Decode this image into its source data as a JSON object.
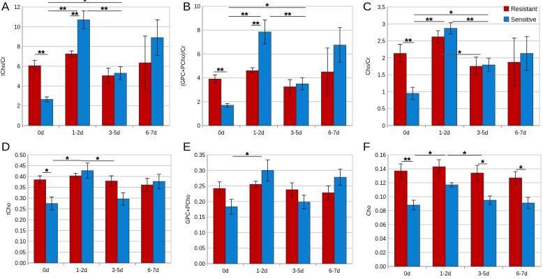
{
  "colors": {
    "resistant": "#c00000",
    "sensitive": "#0a7fd2",
    "grid": "#cccccc",
    "axis": "#999999"
  },
  "legend": {
    "resistant": "Resistant",
    "sensitive": "Sensitive"
  },
  "chart_data": [
    {
      "panel": "A",
      "type": "bar",
      "ylabel": "tCho/Cr",
      "categories": [
        "0d",
        "1-2d",
        "3-5d",
        "6-7d"
      ],
      "ylim": [
        0,
        12
      ],
      "yticks": [
        "0",
        "2",
        "4",
        "6",
        "8",
        "10",
        "12"
      ],
      "series": [
        {
          "name": "Resistant",
          "values": [
            6.05,
            7.25,
            5.05,
            6.35
          ],
          "errors": [
            0.55,
            0.3,
            0.75,
            2.7
          ]
        },
        {
          "name": "Sensitive",
          "values": [
            2.65,
            10.7,
            5.3,
            8.9
          ],
          "errors": [
            0.25,
            0.9,
            0.65,
            1.8
          ]
        }
      ],
      "significance": [
        {
          "from": 0.34,
          "to": 0.69,
          "y": 7.2,
          "label": "**"
        },
        {
          "from": 1.3,
          "to": 1.55,
          "y": 11.1,
          "label": "**"
        },
        {
          "from": 0.7,
          "to": 1.5,
          "y": 11.6,
          "label": "**"
        },
        {
          "from": 1.75,
          "to": 2.7,
          "y": 11.6,
          "label": "**"
        },
        {
          "from": 0.7,
          "to": 2.7,
          "y": 12.45,
          "label": "*"
        }
      ]
    },
    {
      "panel": "B",
      "type": "bar",
      "ylabel": "(GPC+PCho)/Cr",
      "categories": [
        "0d",
        "1-2d",
        "3-5d",
        "6-7d"
      ],
      "ylim": [
        0,
        10
      ],
      "yticks": [
        "0",
        "2",
        "4",
        "6",
        "8",
        "10"
      ],
      "series": [
        {
          "name": "Resistant",
          "values": [
            3.9,
            4.6,
            3.25,
            4.5
          ],
          "errors": [
            0.35,
            0.25,
            0.6,
            2.0
          ]
        },
        {
          "name": "Sensitive",
          "values": [
            1.7,
            7.85,
            3.5,
            6.75
          ],
          "errors": [
            0.15,
            1.0,
            0.5,
            1.45
          ]
        }
      ],
      "significance": [
        {
          "from": 0.3,
          "to": 0.65,
          "y": 4.5,
          "label": "**"
        },
        {
          "from": 1.3,
          "to": 1.55,
          "y": 8.4,
          "label": "**"
        },
        {
          "from": 0.7,
          "to": 1.55,
          "y": 9.15,
          "label": "**"
        },
        {
          "from": 1.8,
          "to": 2.75,
          "y": 9.15,
          "label": "**"
        },
        {
          "from": 0.7,
          "to": 2.75,
          "y": 9.9,
          "label": "*"
        }
      ]
    },
    {
      "panel": "C",
      "type": "bar",
      "ylabel": "Cho/Cr",
      "categories": [
        "0d",
        "1-2d",
        "3-5d",
        "6-7d"
      ],
      "ylim": [
        0,
        3.5
      ],
      "yticks": [
        "0",
        "0.5",
        "1",
        "1.5",
        "2",
        "2.5",
        "3",
        "3.5"
      ],
      "legend": "top-right",
      "series": [
        {
          "name": "Resistant",
          "values": [
            2.13,
            2.62,
            1.75,
            1.87
          ],
          "errors": [
            0.27,
            0.18,
            0.27,
            0.71
          ]
        },
        {
          "name": "Sensitive",
          "values": [
            0.95,
            2.87,
            1.79,
            2.13
          ],
          "errors": [
            0.18,
            0.17,
            0.2,
            0.5
          ]
        }
      ],
      "significance": [
        {
          "from": 0.4,
          "to": 0.7,
          "y": 2.45,
          "label": "**"
        },
        {
          "from": 1.35,
          "to": 2.45,
          "y": 2.1,
          "label": "*"
        },
        {
          "from": 0.7,
          "to": 1.5,
          "y": 3.07,
          "label": "**"
        },
        {
          "from": 1.7,
          "to": 2.65,
          "y": 3.07,
          "label": "**"
        },
        {
          "from": 0.7,
          "to": 2.65,
          "y": 3.27,
          "label": "*"
        }
      ]
    },
    {
      "panel": "D",
      "type": "bar",
      "ylabel": "tCho",
      "categories": [
        "0d",
        "1-2d",
        "3-5d",
        "6-7d"
      ],
      "ylim": [
        0,
        0.5
      ],
      "yticks": [
        "0.00",
        "0.05",
        "0.10",
        "0.15",
        "0.20",
        "0.25",
        "0.30",
        "0.35",
        "0.40",
        "0.45",
        "0.50"
      ],
      "series": [
        {
          "name": "Resistant",
          "values": [
            0.385,
            0.403,
            0.379,
            0.361
          ],
          "errors": [
            0.018,
            0.012,
            0.024,
            0.03
          ]
        },
        {
          "name": "Sensitive",
          "values": [
            0.275,
            0.427,
            0.296,
            0.377
          ],
          "errors": [
            0.03,
            0.035,
            0.028,
            0.033
          ]
        }
      ],
      "significance": [
        {
          "from": 0.4,
          "to": 0.65,
          "y": 0.418,
          "label": "*"
        },
        {
          "from": 0.7,
          "to": 1.5,
          "y": 0.474,
          "label": "*"
        },
        {
          "from": 1.5,
          "to": 2.4,
          "y": 0.472,
          "label": "*"
        }
      ]
    },
    {
      "panel": "E",
      "type": "bar",
      "ylabel": "GPC+PCho",
      "categories": [
        "0d",
        "1-2d",
        "3-5d",
        "6-7d"
      ],
      "ylim": [
        0,
        0.35
      ],
      "yticks": [
        "0.00",
        "0.05",
        "0.10",
        "0.15",
        "0.20",
        "0.25",
        "0.30",
        "0.35"
      ],
      "series": [
        {
          "name": "Resistant",
          "values": [
            0.242,
            0.255,
            0.238,
            0.228
          ],
          "errors": [
            0.021,
            0.01,
            0.022,
            0.022
          ]
        },
        {
          "name": "Sensitive",
          "values": [
            0.183,
            0.3,
            0.198,
            0.278
          ],
          "errors": [
            0.024,
            0.034,
            0.022,
            0.026
          ]
        }
      ],
      "significance": [
        {
          "from": 0.7,
          "to": 1.5,
          "y": 0.345,
          "label": "*"
        }
      ]
    },
    {
      "panel": "F",
      "type": "bar",
      "ylabel": "Cho",
      "categories": [
        "0d",
        "1-2d",
        "3-5d",
        "6-7d"
      ],
      "ylim": [
        0,
        0.16
      ],
      "yticks": [
        "0.00",
        "0.02",
        "0.04",
        "0.06",
        "0.08",
        "0.10",
        "0.12",
        "0.14",
        "0.16"
      ],
      "series": [
        {
          "name": "Resistant",
          "values": [
            0.137,
            0.143,
            0.134,
            0.127
          ],
          "errors": [
            0.01,
            0.01,
            0.011,
            0.009
          ]
        },
        {
          "name": "Sensitive",
          "values": [
            0.088,
            0.117,
            0.095,
            0.091
          ],
          "errors": [
            0.007,
            0.003,
            0.006,
            0.008
          ]
        }
      ],
      "significance": [
        {
          "from": 0.35,
          "to": 0.65,
          "y": 0.1505,
          "label": "**"
        },
        {
          "from": 0.7,
          "to": 1.5,
          "y": 0.1595,
          "label": "*"
        },
        {
          "from": 1.55,
          "to": 2.45,
          "y": 0.1595,
          "label": "*"
        },
        {
          "from": 2.35,
          "to": 2.6,
          "y": 0.147,
          "label": "*"
        },
        {
          "from": 3.35,
          "to": 3.6,
          "y": 0.139,
          "label": "*"
        }
      ]
    }
  ]
}
